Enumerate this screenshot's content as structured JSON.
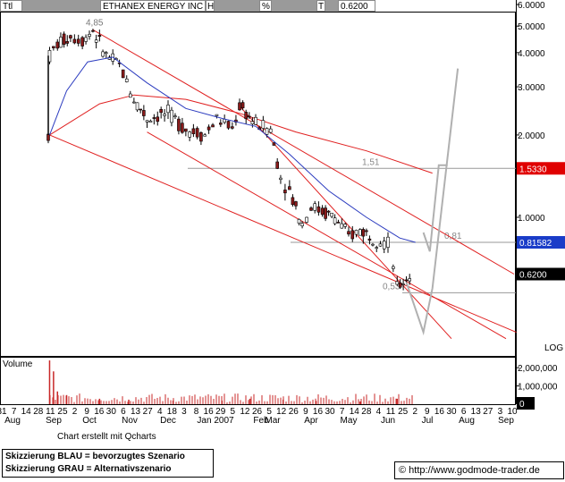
{
  "header": {
    "cells": [
      "Ttl",
      "ETHANEX ENERGY INC",
      "H",
      "%",
      "T",
      "0.6200"
    ]
  },
  "chart_data": {
    "type": "candlestick",
    "title": "ETHANEX ENERGY INC",
    "scale": "log",
    "scale_label": "LOG",
    "ylim": [
      0.35,
      6.0
    ],
    "y_ticks": [
      {
        "v": 6.0,
        "label": "6.0000"
      },
      {
        "v": 5.0,
        "label": "5.0000"
      },
      {
        "v": 4.0,
        "label": "4.0000"
      },
      {
        "v": 3.0,
        "label": "3.0000"
      },
      {
        "v": 2.0,
        "label": "2.0000"
      },
      {
        "v": 1.0,
        "label": "1.0000"
      }
    ],
    "x_day_labels": [
      "31",
      "7",
      "14",
      "28",
      "11",
      "25",
      "2",
      "9",
      "16",
      "30",
      "6",
      "13",
      "27",
      "4",
      "18",
      "3",
      "8",
      "16",
      "29",
      "5",
      "12",
      "26",
      "5",
      "12",
      "26",
      "9",
      "16",
      "30",
      "7",
      "14",
      "28",
      "4",
      "11",
      "25",
      "2",
      "9",
      "16",
      "30",
      "6",
      "13",
      "27",
      "3",
      "10"
    ],
    "x_month_labels": [
      "Aug",
      "Sep",
      "Oct",
      "Nov",
      "Dec",
      "Jan 2007",
      "Feb",
      "Mar",
      "Apr",
      "May",
      "Jun",
      "Jul",
      "Aug",
      "Sep"
    ],
    "price_points": [
      {
        "d": "2006-09-01",
        "v": 2.0
      },
      {
        "d": "2006-09-02",
        "v": 3.9
      },
      {
        "d": "2006-09-08",
        "v": 4.3
      },
      {
        "d": "2006-09-18",
        "v": 4.6
      },
      {
        "d": "2006-09-27",
        "v": 4.45
      },
      {
        "d": "2006-10-05",
        "v": 4.85
      },
      {
        "d": "2006-10-15",
        "v": 3.9
      },
      {
        "d": "2006-10-25",
        "v": 3.6
      },
      {
        "d": "2006-11-05",
        "v": 2.7
      },
      {
        "d": "2006-11-15",
        "v": 2.3
      },
      {
        "d": "2006-12-01",
        "v": 2.4
      },
      {
        "d": "2006-12-15",
        "v": 2.1
      },
      {
        "d": "2006-12-30",
        "v": 2.0
      },
      {
        "d": "2007-01-10",
        "v": 2.3
      },
      {
        "d": "2007-01-25",
        "v": 2.1
      },
      {
        "d": "2007-02-01",
        "v": 2.55
      },
      {
        "d": "2007-02-15",
        "v": 2.2
      },
      {
        "d": "2007-02-28",
        "v": 2.1
      },
      {
        "d": "2007-03-08",
        "v": 1.4
      },
      {
        "d": "2007-03-15",
        "v": 1.25
      },
      {
        "d": "2007-03-25",
        "v": 0.95
      },
      {
        "d": "2007-04-01",
        "v": 1.1
      },
      {
        "d": "2007-04-10",
        "v": 1.05
      },
      {
        "d": "2007-04-20",
        "v": 1.0
      },
      {
        "d": "2007-05-01",
        "v": 0.85
      },
      {
        "d": "2007-05-10",
        "v": 0.9
      },
      {
        "d": "2007-05-20",
        "v": 0.85
      },
      {
        "d": "2007-06-01",
        "v": 0.8
      },
      {
        "d": "2007-06-05",
        "v": 0.67
      },
      {
        "d": "2007-06-08",
        "v": 0.55
      },
      {
        "d": "2007-06-15",
        "v": 0.6
      },
      {
        "d": "2007-06-20",
        "v": 0.62
      }
    ],
    "ma_points": [
      {
        "d": "2006-09-02",
        "v": 2.0
      },
      {
        "d": "2006-09-15",
        "v": 2.9
      },
      {
        "d": "2006-10-01",
        "v": 3.7
      },
      {
        "d": "2006-10-20",
        "v": 3.85
      },
      {
        "d": "2006-11-15",
        "v": 3.1
      },
      {
        "d": "2006-12-15",
        "v": 2.5
      },
      {
        "d": "2007-01-15",
        "v": 2.3
      },
      {
        "d": "2007-02-15",
        "v": 2.15
      },
      {
        "d": "2007-03-15",
        "v": 1.7
      },
      {
        "d": "2007-04-15",
        "v": 1.25
      },
      {
        "d": "2007-05-15",
        "v": 1.0
      },
      {
        "d": "2007-06-10",
        "v": 0.84
      },
      {
        "d": "2007-06-22",
        "v": 0.81
      }
    ],
    "long_ma_points": [
      {
        "d": "2006-09-02",
        "v": 2.0
      },
      {
        "d": "2006-10-10",
        "v": 2.6
      },
      {
        "d": "2006-11-05",
        "v": 2.8
      },
      {
        "d": "2006-12-15",
        "v": 2.7
      },
      {
        "d": "2007-02-01",
        "v": 2.4
      },
      {
        "d": "2007-03-20",
        "v": 2.05
      },
      {
        "d": "2007-05-15",
        "v": 1.75
      },
      {
        "d": "2007-07-05",
        "v": 1.45
      }
    ],
    "trendlines": [
      {
        "from": {
          "d": "2006-10-05",
          "v": 4.85
        },
        "to": {
          "d": "2007-09-08",
          "v": 0.62
        }
      },
      {
        "from": {
          "d": "2006-09-02",
          "v": 2.0
        },
        "to": {
          "d": "2007-09-10",
          "v": 0.38
        }
      },
      {
        "from": {
          "d": "2006-11-15",
          "v": 2.05
        },
        "to": {
          "d": "2007-09-01",
          "v": 0.36
        }
      },
      {
        "from": {
          "d": "2007-02-01",
          "v": 2.55
        },
        "to": {
          "d": "2007-07-20",
          "v": 0.36
        }
      }
    ],
    "levels": [
      {
        "label": "1,51",
        "value": 1.51,
        "axis_label": "1.5330"
      },
      {
        "label": "0,81",
        "value": 0.81,
        "axis_label": "0.81582"
      },
      {
        "label": "0,53",
        "value": 0.53
      }
    ],
    "price_label": "0.6200",
    "price_value": 0.62,
    "peak_label": "4,85",
    "peak_value": 4.85,
    "gray_scenario": [
      {
        "d": "2007-06-15",
        "v": 0.58
      },
      {
        "d": "2007-06-28",
        "v": 0.38
      },
      {
        "d": "2007-07-05",
        "v": 0.55
      },
      {
        "d": "2007-07-25",
        "v": 3.5
      }
    ],
    "gray_scenario_2": [
      {
        "d": "2007-06-28",
        "v": 0.88
      },
      {
        "d": "2007-07-03",
        "v": 0.75
      },
      {
        "d": "2007-07-10",
        "v": 1.55
      },
      {
        "d": "2007-07-17",
        "v": 1.55
      }
    ],
    "volume": {
      "label": "Volume",
      "ticks": [
        {
          "v": 2000000,
          "label": "2,000,000"
        },
        {
          "v": 1000000,
          "label": "1,000,000"
        },
        {
          "v": 0,
          "label": "0"
        }
      ],
      "max": 2500000,
      "spikes": [
        {
          "d": "2006-09-02",
          "v": 2400000
        },
        {
          "d": "2006-09-05",
          "v": 1800000
        },
        {
          "d": "2006-09-08",
          "v": 700000
        },
        {
          "d": "2006-09-15",
          "v": 500000
        },
        {
          "d": "2006-10-10",
          "v": 300000
        },
        {
          "d": "2006-11-01",
          "v": 250000
        },
        {
          "d": "2006-12-05",
          "v": 200000
        },
        {
          "d": "2007-01-15",
          "v": 200000
        },
        {
          "d": "2007-02-10",
          "v": 300000
        },
        {
          "d": "2007-03-10",
          "v": 250000
        },
        {
          "d": "2007-04-05",
          "v": 180000
        },
        {
          "d": "2007-05-10",
          "v": 150000
        },
        {
          "d": "2007-06-08",
          "v": 300000
        }
      ]
    }
  },
  "notes": {
    "made_with": "Chart erstellt mit Qcharts",
    "legend_blue": "Skizzierung BLAU = bevorzugtes Szenario",
    "legend_gray": "Skizzierung GRAU = Alternativszenario",
    "credit": "© http://www.godmode-trader.de"
  },
  "colors": {
    "candle_up": "#ffffff",
    "candle_down": "#8b1a1a",
    "ma_blue": "#2b3bbf",
    "trend_red": "#e02020",
    "level_gray": "#999999",
    "scenario_gray": "#b0b0b0",
    "volume_red": "#c82828",
    "axis_label_red": "#e00000",
    "axis_label_blue": "#1a3cc8",
    "axis_label_black": "#000000"
  }
}
